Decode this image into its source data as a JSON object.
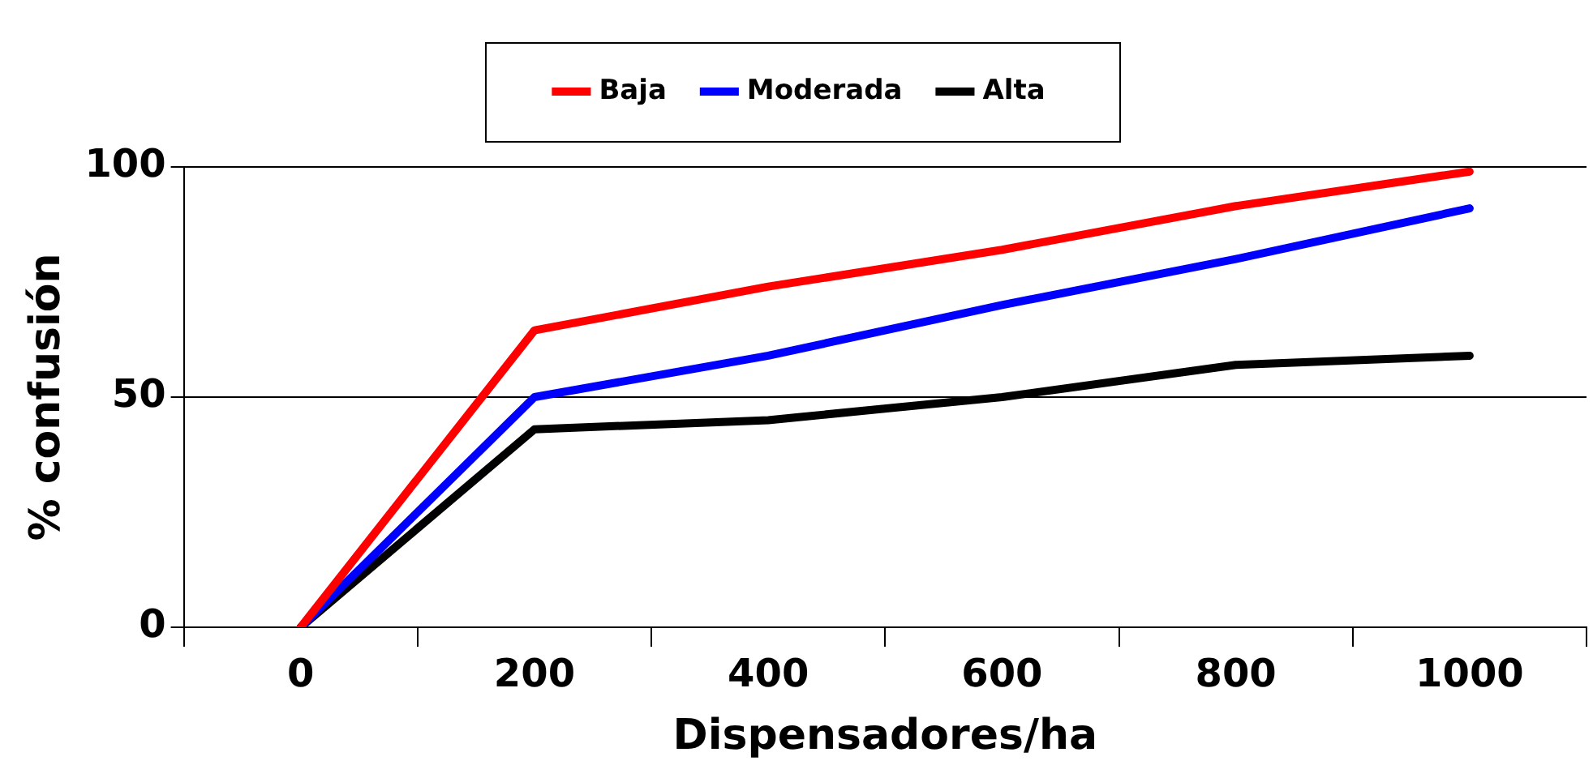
{
  "chart_data": {
    "type": "line",
    "xlabel": "Dispensadores/ha",
    "ylabel": "% confusión",
    "categories": [
      "0",
      "200",
      "400",
      "600",
      "800",
      "1000"
    ],
    "series": [
      {
        "name": "Baja",
        "color": "#ff0000",
        "values": [
          0,
          64.5,
          74,
          82,
          91.5,
          99
        ]
      },
      {
        "name": "Moderada",
        "color": "#0000ff",
        "values": [
          0,
          50,
          59,
          70,
          80,
          91
        ]
      },
      {
        "name": "Alta",
        "color": "#000000",
        "values": [
          0,
          43,
          45,
          50,
          57,
          59
        ]
      }
    ],
    "ylim": [
      0,
      100
    ],
    "yticks": [
      0,
      50,
      100
    ],
    "grid": "y",
    "legend": "top",
    "marker": "none",
    "line_style": "solid"
  }
}
